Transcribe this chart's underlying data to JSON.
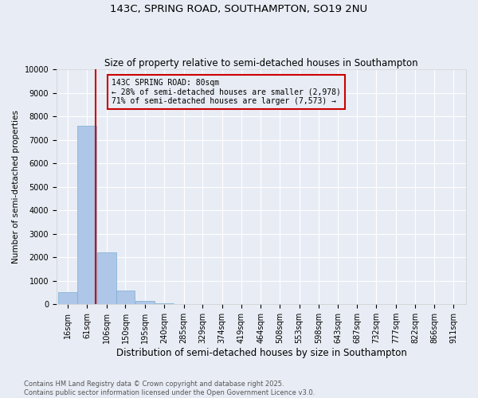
{
  "title": "143C, SPRING ROAD, SOUTHAMPTON, SO19 2NU",
  "subtitle": "Size of property relative to semi-detached houses in Southampton",
  "xlabel": "Distribution of semi-detached houses by size in Southampton",
  "ylabel": "Number of semi-detached properties",
  "bar_color": "#aec6e8",
  "bar_edge_color": "#7aaed4",
  "background_color": "#e8edf5",
  "grid_color": "#ffffff",
  "bin_edges": [
    16,
    61,
    106,
    150,
    195,
    240,
    285,
    329,
    374,
    419,
    464,
    508,
    553,
    598,
    643,
    687,
    732,
    777,
    822,
    866,
    911
  ],
  "bar_heights": [
    500,
    7600,
    2200,
    600,
    150,
    50,
    10,
    5,
    3,
    2,
    1,
    1,
    0,
    0,
    0,
    0,
    0,
    0,
    0,
    0
  ],
  "property_size": 80,
  "vline_color": "#cc0000",
  "annotation_text": "143C SPRING ROAD: 80sqm\n← 28% of semi-detached houses are smaller (2,978)\n71% of semi-detached houses are larger (7,573) →",
  "annotation_box_color": "#cc0000",
  "ylim": [
    0,
    10000
  ],
  "yticks": [
    0,
    1000,
    2000,
    3000,
    4000,
    5000,
    6000,
    7000,
    8000,
    9000,
    10000
  ],
  "footer_text": "Contains HM Land Registry data © Crown copyright and database right 2025.\nContains public sector information licensed under the Open Government Licence v3.0.",
  "title_fontsize": 9.5,
  "subtitle_fontsize": 8.5,
  "xlabel_fontsize": 8.5,
  "ylabel_fontsize": 7.5,
  "tick_fontsize": 7,
  "footer_fontsize": 6,
  "annotation_fontsize": 7
}
